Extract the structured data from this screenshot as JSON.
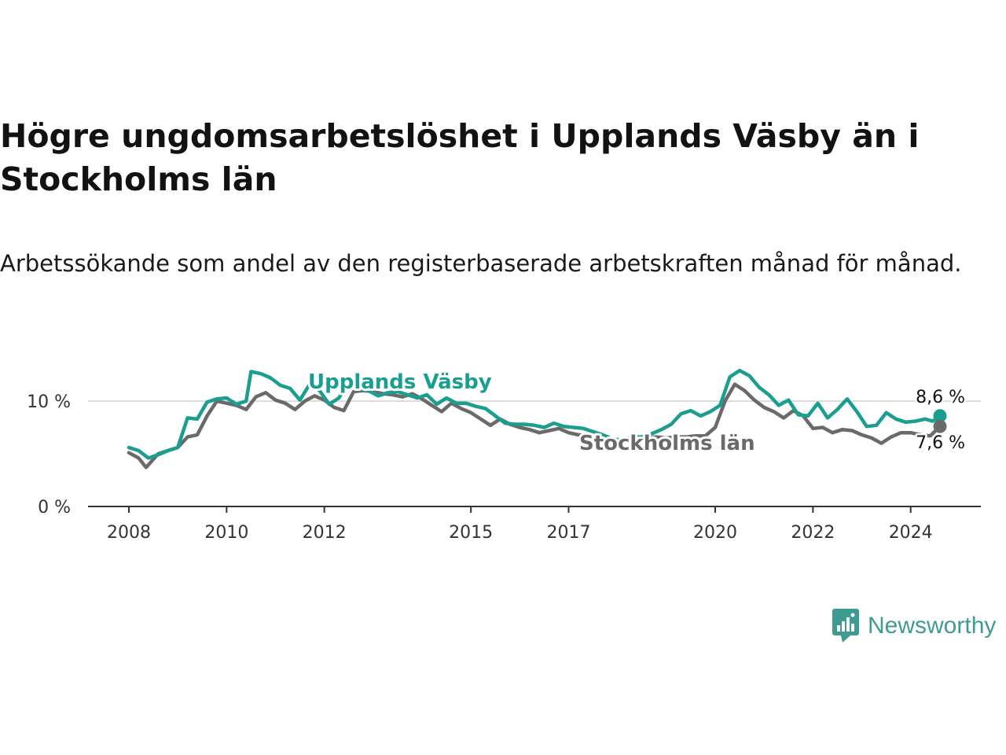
{
  "title": "Högre ungdomsarbetslöshet i Upplands Väsby än i Stockholms län",
  "subtitle": "Arbetssökande som andel av den registerbaserade arbetskraften månad för månad.",
  "brand": {
    "name": "Newsworthy",
    "color": "#3d9b92",
    "icon": "newsworthy-bar-chart-icon"
  },
  "colors": {
    "primary": "#1a9e8f",
    "secondary": "#6a6a6a",
    "grid": "#dddddd",
    "axis": "#333333"
  },
  "chart_data": {
    "type": "line",
    "title": "Högre ungdomsarbetslöshet i Upplands Väsby än i Stockholms län",
    "xlabel": "",
    "ylabel": "",
    "x_range": [
      2008,
      2024.6
    ],
    "ylim": [
      0,
      13.5
    ],
    "x_ticks": [
      {
        "value": 2008,
        "label": "2008"
      },
      {
        "value": 2010,
        "label": "2010"
      },
      {
        "value": 2012,
        "label": "2012"
      },
      {
        "value": 2015,
        "label": "2015"
      },
      {
        "value": 2017,
        "label": "2017"
      },
      {
        "value": 2020,
        "label": "2020"
      },
      {
        "value": 2022,
        "label": "2022"
      },
      {
        "value": 2024,
        "label": "2024"
      }
    ],
    "y_ticks": [
      {
        "value": 0,
        "label": "0 %"
      },
      {
        "value": 10,
        "label": "10 %"
      }
    ],
    "series": [
      {
        "name": "Upplands Väsby",
        "end_label": "8,6 %",
        "x": [
          2008.0,
          2008.2,
          2008.4,
          2008.6,
          2008.8,
          2009.0,
          2009.2,
          2009.4,
          2009.6,
          2009.8,
          2010.0,
          2010.2,
          2010.4,
          2010.5,
          2010.7,
          2010.9,
          2011.1,
          2011.3,
          2011.5,
          2011.7,
          2011.9,
          2012.1,
          2012.3,
          2012.5,
          2012.7,
          2012.9,
          2013.1,
          2013.3,
          2013.5,
          2013.7,
          2013.9,
          2014.1,
          2014.3,
          2014.5,
          2014.7,
          2014.9,
          2015.1,
          2015.3,
          2015.5,
          2015.7,
          2015.9,
          2016.1,
          2016.3,
          2016.5,
          2016.7,
          2016.9,
          2017.1,
          2017.3,
          2017.5,
          2017.7,
          2017.9,
          2018.1,
          2018.3,
          2018.5,
          2018.7,
          2018.9,
          2019.1,
          2019.3,
          2019.5,
          2019.7,
          2019.9,
          2020.1,
          2020.3,
          2020.5,
          2020.7,
          2020.9,
          2021.1,
          2021.3,
          2021.5,
          2021.7,
          2021.9,
          2022.1,
          2022.3,
          2022.5,
          2022.7,
          2022.9,
          2023.1,
          2023.3,
          2023.5,
          2023.7,
          2023.9,
          2024.1,
          2024.3,
          2024.45,
          2024.6
        ],
        "y": [
          5.6,
          5.3,
          4.6,
          4.9,
          5.3,
          5.6,
          8.4,
          8.3,
          9.9,
          10.2,
          10.3,
          9.7,
          10.0,
          12.8,
          12.6,
          12.2,
          11.5,
          11.2,
          10.1,
          11.6,
          11.0,
          9.7,
          10.3,
          11.9,
          11.2,
          11.0,
          10.5,
          10.8,
          10.9,
          10.6,
          10.3,
          10.6,
          9.7,
          10.3,
          9.8,
          9.8,
          9.5,
          9.3,
          8.6,
          7.9,
          7.8,
          7.8,
          7.7,
          7.5,
          7.9,
          7.6,
          7.5,
          7.4,
          7.1,
          6.8,
          6.4,
          6.3,
          6.6,
          6.6,
          6.9,
          7.3,
          7.8,
          8.8,
          9.1,
          8.6,
          9.0,
          9.6,
          12.3,
          12.9,
          12.4,
          11.3,
          10.6,
          9.6,
          10.1,
          8.7,
          8.6,
          9.8,
          8.4,
          9.2,
          10.2,
          9.0,
          7.6,
          7.7,
          8.9,
          8.3,
          8.0,
          8.1,
          8.3,
          8.1,
          8.6
        ]
      },
      {
        "name": "Stockholms län",
        "end_label": "7,6 %",
        "x": [
          2008.0,
          2008.2,
          2008.35,
          2008.6,
          2008.8,
          2009.0,
          2009.2,
          2009.4,
          2009.6,
          2009.8,
          2010.0,
          2010.2,
          2010.4,
          2010.6,
          2010.8,
          2011.0,
          2011.2,
          2011.4,
          2011.6,
          2011.8,
          2012.0,
          2012.2,
          2012.4,
          2012.6,
          2012.8,
          2013.0,
          2013.2,
          2013.4,
          2013.6,
          2013.8,
          2014.0,
          2014.2,
          2014.4,
          2014.6,
          2014.8,
          2015.0,
          2015.2,
          2015.4,
          2015.6,
          2015.8,
          2016.0,
          2016.2,
          2016.4,
          2016.6,
          2016.8,
          2017.0,
          2017.2,
          2017.4,
          2017.6,
          2017.8,
          2018.0,
          2018.2,
          2018.4,
          2018.6,
          2018.8,
          2019.0,
          2019.2,
          2019.4,
          2019.6,
          2019.8,
          2020.0,
          2020.2,
          2020.4,
          2020.6,
          2020.8,
          2021.0,
          2021.2,
          2021.4,
          2021.6,
          2021.8,
          2022.0,
          2022.2,
          2022.4,
          2022.6,
          2022.8,
          2023.0,
          2023.2,
          2023.4,
          2023.6,
          2023.8,
          2024.0,
          2024.2,
          2024.4,
          2024.6
        ],
        "y": [
          5.1,
          4.6,
          3.7,
          5.0,
          5.3,
          5.6,
          6.6,
          6.8,
          8.6,
          10.0,
          9.8,
          9.6,
          9.2,
          10.4,
          10.8,
          10.1,
          9.8,
          9.2,
          10.0,
          10.5,
          10.1,
          9.4,
          9.1,
          10.9,
          11.0,
          10.9,
          10.7,
          10.6,
          10.4,
          10.7,
          10.2,
          9.6,
          9.0,
          9.8,
          9.3,
          8.9,
          8.3,
          7.7,
          8.3,
          7.8,
          7.5,
          7.3,
          7.0,
          7.2,
          7.4,
          7.0,
          6.8,
          6.7,
          6.6,
          6.4,
          6.3,
          6.3,
          6.4,
          6.5,
          6.6,
          6.5,
          6.6,
          6.6,
          6.7,
          6.7,
          7.5,
          10.0,
          11.6,
          11.0,
          10.1,
          9.4,
          9.0,
          8.4,
          9.1,
          8.6,
          7.4,
          7.5,
          7.0,
          7.3,
          7.2,
          6.8,
          6.5,
          6.0,
          6.6,
          7.0,
          7.0,
          6.8,
          6.7,
          7.6
        ]
      }
    ]
  }
}
